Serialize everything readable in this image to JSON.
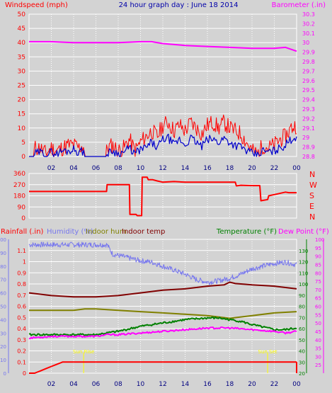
{
  "header": {
    "left": "Windspeed (mph)",
    "center": "24 hour graph day : June 18 2014",
    "right": "Barometer (.in)"
  },
  "colors": {
    "background": "#d3d3d3",
    "grid": "#ffffff",
    "wind_gust": "#ff0000",
    "wind_avg": "#0000cc",
    "barometer": "#ff00ff",
    "direction": "#ff0000",
    "rain": "#ff0000",
    "humidity": "#7777ee",
    "indoor_hum": "#808000",
    "indoor_temp": "#800000",
    "temperature": "#008000",
    "dew_point": "#ff00ff",
    "temp_axis": "#008000",
    "dew_axis": "#ff00ff",
    "title_blue": "#0000aa",
    "time_marker": "#ffff00"
  },
  "time_ticks": [
    "02",
    "04",
    "06",
    "08",
    "10",
    "12",
    "14",
    "16",
    "18",
    "20",
    "22",
    "00"
  ],
  "chart_data": [
    {
      "type": "line",
      "title": "24 hour graph day : June 18 2014",
      "ylabel": "Windspeed (mph)",
      "y2label": "Barometer (.in)",
      "xlim": [
        0,
        24
      ],
      "ylim": [
        0,
        50
      ],
      "y2lim": [
        28.8,
        30.3
      ],
      "y_ticks": [
        "0",
        "5",
        "10",
        "15",
        "20",
        "25",
        "30",
        "35",
        "40",
        "45",
        "50"
      ],
      "y2_ticks": [
        "28.8",
        "28.9",
        "29",
        "29.1",
        "29.2",
        "29.3",
        "29.4",
        "29.5",
        "29.6",
        "29.7",
        "29.8",
        "29.9",
        "30",
        "30.1",
        "30.2",
        "30.3"
      ],
      "series": [
        {
          "key": "gust",
          "axis": "left",
          "x": [
            0,
            0.4,
            0.5,
            1,
            1.5,
            2,
            2.5,
            3,
            3.5,
            4,
            4.5,
            4.9,
            5,
            6,
            6.5,
            6.9,
            7,
            7.5,
            8,
            8.5,
            9,
            9.5,
            10,
            10.5,
            11,
            11.5,
            12,
            12.5,
            13,
            13.5,
            14,
            14.5,
            15,
            15.5,
            16,
            16.5,
            17,
            17.5,
            18,
            18.5,
            19,
            19.5,
            20,
            20.5,
            21,
            21.5,
            22,
            22.5,
            23,
            23.5,
            24
          ],
          "values": [
            0,
            0,
            3,
            3,
            1,
            3,
            2,
            3,
            4,
            4,
            3,
            4,
            0,
            0,
            0,
            0,
            3,
            4,
            2,
            3,
            6,
            2,
            5,
            7,
            9,
            7,
            11,
            12,
            9,
            11,
            9,
            12,
            10,
            8,
            11,
            12,
            10,
            12,
            10,
            9,
            8,
            5,
            2,
            1,
            4,
            3,
            4,
            6,
            7,
            10,
            11
          ]
        },
        {
          "key": "avg",
          "axis": "left",
          "x": [
            0,
            0.4,
            0.5,
            1,
            1.5,
            2,
            2.5,
            3,
            3.5,
            4,
            4.5,
            4.9,
            5,
            6,
            6.5,
            6.9,
            7,
            7.5,
            8,
            8.5,
            9,
            9.5,
            10,
            10.5,
            11,
            11.5,
            12,
            12.5,
            13,
            13.5,
            14,
            14.5,
            15,
            15.5,
            16,
            16.5,
            17,
            17.5,
            18,
            18.5,
            19,
            19.5,
            20,
            20.5,
            21,
            21.5,
            22,
            22.5,
            23,
            23.5,
            24
          ],
          "values": [
            0,
            0,
            1,
            1.5,
            0.5,
            1.5,
            1,
            2,
            2,
            2.5,
            1.5,
            2,
            0,
            0,
            0,
            0,
            1,
            2,
            1,
            1.5,
            3,
            1,
            2.5,
            3,
            5,
            3,
            6,
            6.5,
            4,
            6,
            4,
            6.5,
            5,
            3.5,
            6,
            6,
            5,
            6.5,
            5,
            4,
            3.5,
            2,
            1,
            0.5,
            2,
            1.5,
            2,
            3,
            4,
            6,
            7
          ]
        },
        {
          "key": "barometer",
          "axis": "right",
          "x": [
            0,
            2,
            4,
            6,
            8,
            10,
            11,
            12,
            14,
            16,
            18,
            20,
            22,
            23,
            24
          ],
          "values": [
            30.01,
            30.01,
            30.0,
            30.0,
            30.0,
            30.01,
            30.01,
            29.99,
            29.97,
            29.96,
            29.95,
            29.94,
            29.94,
            29.95,
            29.91
          ]
        }
      ]
    },
    {
      "type": "line",
      "ylabel": "Wind direction",
      "xlim": [
        0,
        24
      ],
      "ylim": [
        0,
        360
      ],
      "y_ticks": [
        "0",
        "90",
        "180",
        "270",
        "360"
      ],
      "compass": [
        "N",
        "W",
        "S",
        "E",
        "N"
      ],
      "series": [
        {
          "key": "direction",
          "x": [
            0,
            3,
            5,
            6.95,
            7,
            9.0,
            9.05,
            9.6,
            9.7,
            10.1,
            10.15,
            10.6,
            10.7,
            11.0,
            11.1,
            11.5,
            12,
            13,
            14,
            15,
            16,
            17,
            18,
            18.5,
            18.6,
            19,
            20,
            20.7,
            20.8,
            21.4,
            21.5,
            22,
            23,
            23.3,
            24
          ],
          "values": [
            215,
            215,
            215,
            215,
            270,
            270,
            30,
            30,
            20,
            20,
            330,
            330,
            310,
            310,
            310,
            300,
            290,
            295,
            290,
            290,
            290,
            290,
            290,
            290,
            260,
            265,
            262,
            262,
            140,
            150,
            180,
            190,
            210,
            205,
            205
          ]
        }
      ]
    },
    {
      "type": "line",
      "labels": [
        "Rainfall (.in)",
        "Humidity (%)",
        "Indoor hum",
        "Indoor temp",
        "Temperature (°F)",
        "Dew Point (°F)"
      ],
      "xlim": [
        0,
        24
      ],
      "rain_ylim": [
        0,
        1.2
      ],
      "hum_ylim": [
        0,
        100
      ],
      "temp_ylim": [
        20,
        140
      ],
      "dew_ylim": [
        20,
        100
      ],
      "rain_ticks": [
        "0",
        "0.1",
        "0.2",
        "0.3",
        "0.4",
        "0.5",
        "0.6",
        "0.7",
        "0.8",
        "0.9",
        "1",
        "1.1"
      ],
      "hum_ticks": [
        "0",
        "10",
        "20",
        "30",
        "40",
        "50",
        "60",
        "70",
        "80",
        "90",
        "100"
      ],
      "temp_ticks": [
        "20",
        "30",
        "40",
        "50",
        "60",
        "70",
        "80",
        "90",
        "100",
        "110",
        "120",
        "130"
      ],
      "dew_ticks": [
        "25",
        "30",
        "35",
        "40",
        "45",
        "50",
        "55",
        "60",
        "65",
        "70",
        "75",
        "80",
        "85",
        "90",
        "95",
        "100"
      ],
      "markers": [
        {
          "x": 4.9,
          "text": "Sun Rise"
        },
        {
          "x": 21.4,
          "text": "Sun Set"
        }
      ],
      "series": [
        {
          "key": "rain",
          "axis": "rain",
          "x": [
            0,
            0.5,
            1,
            1.5,
            2,
            2.5,
            3,
            24
          ],
          "values": [
            0,
            0,
            0.02,
            0.04,
            0.06,
            0.08,
            0.1,
            0.1
          ]
        },
        {
          "key": "humidity",
          "axis": "hum",
          "x": [
            0,
            1,
            2,
            3,
            4,
            5,
            6,
            7,
            7.5,
            8,
            9,
            10,
            11,
            12,
            13,
            14,
            15,
            16,
            17,
            18,
            19,
            20,
            21,
            22,
            23,
            24
          ],
          "values": [
            96,
            96,
            96,
            96,
            96,
            96,
            96,
            96,
            89,
            88,
            86,
            84,
            83,
            80,
            77,
            74,
            70,
            68,
            69,
            71,
            74,
            78,
            80,
            82,
            83,
            81
          ]
        },
        {
          "key": "indoor_hum",
          "axis": "hum",
          "x": [
            0,
            2,
            4,
            5,
            6,
            8,
            10,
            12,
            14,
            16,
            18,
            19,
            20,
            22,
            24
          ],
          "values": [
            47,
            47,
            47,
            48,
            48,
            47,
            46,
            45,
            44,
            43,
            41,
            42,
            43,
            45,
            46
          ]
        },
        {
          "key": "indoor_temp",
          "axis": "hum",
          "x": [
            0,
            2,
            4,
            6,
            8,
            10,
            12,
            14,
            16,
            17.5,
            18,
            18.5,
            20,
            22,
            24
          ],
          "values": [
            60,
            58,
            57,
            57,
            58,
            60,
            62,
            63,
            65,
            66,
            68,
            67,
            66,
            65,
            63
          ]
        },
        {
          "key": "temperature",
          "axis": "dew",
          "x": [
            0,
            2,
            4,
            6,
            7,
            8,
            10,
            12,
            14,
            16,
            17,
            18,
            19,
            20,
            22,
            23,
            24
          ],
          "values": [
            43,
            43,
            43,
            43,
            44,
            45,
            48,
            50,
            52,
            53,
            53,
            52,
            51,
            49,
            46,
            46,
            47
          ]
        },
        {
          "key": "dew_point",
          "axis": "dew",
          "x": [
            0,
            2,
            4,
            6,
            7,
            8,
            10,
            12,
            14,
            16,
            18,
            20,
            22,
            23,
            24
          ],
          "values": [
            41,
            42,
            42,
            42,
            43,
            43,
            44,
            45,
            46,
            47,
            47,
            46,
            45,
            44,
            45
          ]
        }
      ]
    }
  ]
}
